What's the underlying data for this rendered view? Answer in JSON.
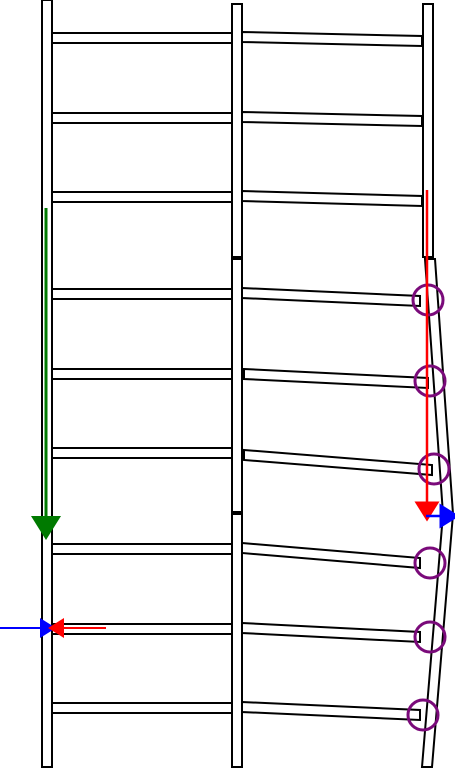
{
  "diagram": {
    "colors": {
      "background": "#ffffff",
      "stroke": "#000000",
      "green_arrow": "#007a00",
      "red_arrow": "#ff0000",
      "blue_arrow": "#0000ff",
      "highlight_circle": "#7a0a7a"
    },
    "structure": {
      "columns": 3,
      "floors": 9,
      "bays": 2,
      "right_column_segments": 3,
      "middle_column_segments": 3
    },
    "annotations": {
      "highlight_circle_count": 6,
      "arrow_count": 5
    }
  }
}
